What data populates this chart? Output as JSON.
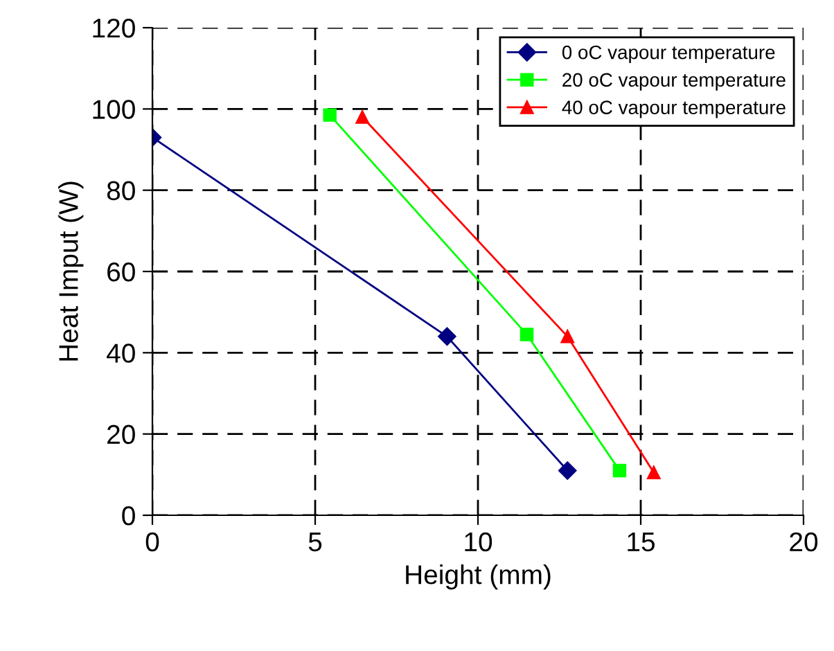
{
  "chart_data": {
    "type": "line",
    "xlabel": "Height (mm)",
    "ylabel": "Heat Imput (W)",
    "xlim": [
      0,
      20
    ],
    "xticks": [
      0,
      5,
      10,
      15,
      20
    ],
    "ylim": [
      0,
      120
    ],
    "yticks": [
      0,
      20,
      40,
      60,
      80,
      100,
      120
    ],
    "grid": true,
    "legend": "top right",
    "line_style": "solid",
    "series": [
      {
        "name": "0 oC vapour temperature",
        "color": "#000080",
        "marker": "diamond",
        "x": [
          0,
          9.05,
          12.75
        ],
        "values": [
          93,
          44,
          11
        ]
      },
      {
        "name": "20 oC vapour temperature",
        "color": "#00ff00",
        "marker": "square",
        "x": [
          5.45,
          11.5,
          14.35
        ],
        "values": [
          98.5,
          44.5,
          11
        ]
      },
      {
        "name": "40 oC vapour temperature",
        "color": "#ff0000",
        "marker": "triangle",
        "x": [
          6.45,
          12.75,
          15.4
        ],
        "values": [
          98,
          44,
          10.5
        ]
      }
    ]
  }
}
